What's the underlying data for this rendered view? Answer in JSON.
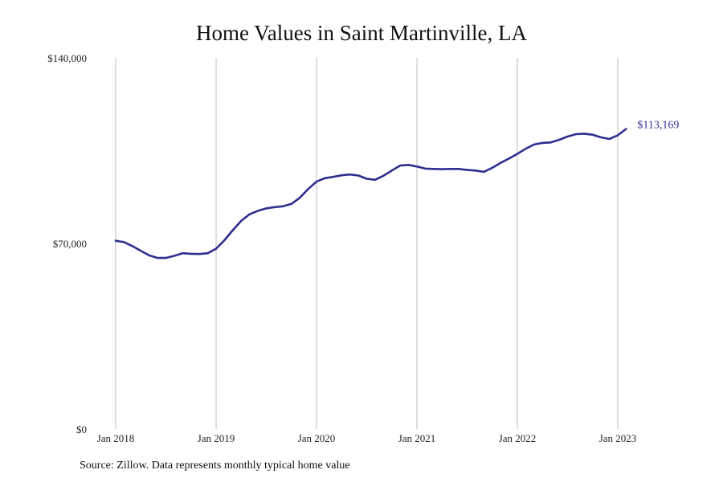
{
  "title": "Home Values in Saint Martinville, LA",
  "source": "Source: Zillow. Data represents monthly typical home value",
  "chart_data": {
    "type": "line",
    "title": "Home Values in Saint Martinville, LA",
    "xlabel": "",
    "ylabel": "",
    "ylim": [
      0,
      140000
    ],
    "y_ticks": [
      0,
      70000,
      140000
    ],
    "y_tick_labels": [
      "$0",
      "$70,000",
      "$140,000"
    ],
    "x_ticks": [
      "2018-01",
      "2019-01",
      "2020-01",
      "2021-01",
      "2022-01",
      "2023-01"
    ],
    "x_tick_labels": [
      "Jan 2018",
      "Jan 2019",
      "Jan 2020",
      "Jan 2021",
      "Jan 2022",
      "Jan 2023"
    ],
    "grid": "vertical",
    "line_color": "#2e2e8f",
    "series": [
      {
        "name": "",
        "x": [
          "2018-01",
          "2018-02",
          "2018-03",
          "2018-04",
          "2018-05",
          "2018-06",
          "2018-07",
          "2018-08",
          "2018-09",
          "2018-10",
          "2018-11",
          "2018-12",
          "2019-01",
          "2019-02",
          "2019-03",
          "2019-04",
          "2019-05",
          "2019-06",
          "2019-07",
          "2019-08",
          "2019-09",
          "2019-10",
          "2019-11",
          "2019-12",
          "2020-01",
          "2020-02",
          "2020-03",
          "2020-04",
          "2020-05",
          "2020-06",
          "2020-07",
          "2020-08",
          "2020-09",
          "2020-10",
          "2020-11",
          "2020-12",
          "2021-01",
          "2021-02",
          "2021-03",
          "2021-04",
          "2021-05",
          "2021-06",
          "2021-07",
          "2021-08",
          "2021-09",
          "2021-10",
          "2021-11",
          "2021-12",
          "2022-01",
          "2022-02",
          "2022-03",
          "2022-04",
          "2022-05",
          "2022-06",
          "2022-07",
          "2022-08",
          "2022-09",
          "2022-10",
          "2022-11",
          "2022-12",
          "2023-01",
          "2023-02"
        ],
        "values": [
          71000,
          70500,
          69000,
          67200,
          65500,
          64500,
          64500,
          65300,
          66300,
          66100,
          66000,
          66300,
          68000,
          71200,
          75000,
          78500,
          81000,
          82300,
          83200,
          83700,
          84000,
          84900,
          87200,
          90500,
          93300,
          94600,
          95100,
          95700,
          96000,
          95600,
          94400,
          94000,
          95500,
          97500,
          99400,
          99600,
          99000,
          98200,
          98100,
          98000,
          98100,
          98100,
          97700,
          97500,
          97000,
          98500,
          100400,
          102000,
          103800,
          105700,
          107300,
          107900,
          108100,
          109100,
          110300,
          111200,
          111400,
          111000,
          110000,
          109400,
          110800,
          113169
        ]
      }
    ],
    "end_label": "$113,169"
  }
}
